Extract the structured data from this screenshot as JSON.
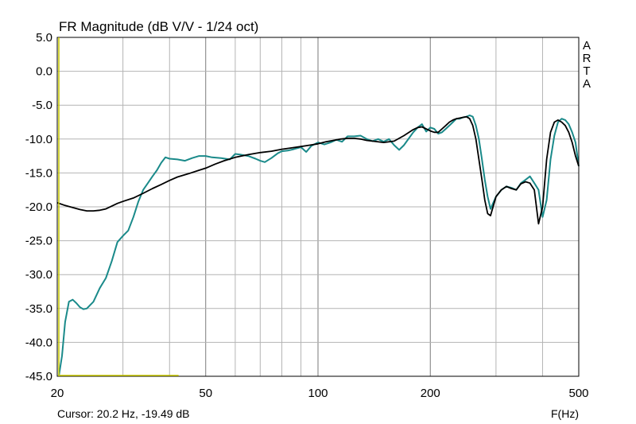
{
  "chart_data": {
    "type": "line",
    "title": "FR Magnitude (dB V/V - 1/24 oct)",
    "brand_letters": [
      "A",
      "R",
      "T",
      "A"
    ],
    "xlabel": "F(Hz)",
    "x_scale": "log",
    "xlim": [
      20,
      500
    ],
    "ylim": [
      -45,
      5
    ],
    "x_ticks": [
      "20",
      "50",
      "100",
      "200",
      "500"
    ],
    "x_tick_values": [
      20,
      50,
      100,
      200,
      500
    ],
    "y_ticks": [
      "5.0",
      "0.0",
      "-5.0",
      "-10.0",
      "-15.0",
      "-20.0",
      "-25.0",
      "-30.0",
      "-35.0",
      "-40.0",
      "-45.0"
    ],
    "y_tick_values": [
      5,
      0,
      -5,
      -10,
      -15,
      -20,
      -25,
      -30,
      -35,
      -40,
      -45
    ],
    "grid": true,
    "cursor_text": "Cursor: 20.2 Hz, -19.49 dB",
    "cursor": {
      "freq": 20.2,
      "level": -19.49,
      "color": "#c8c800"
    },
    "series": [
      {
        "color": "#1a8a8a",
        "x": [
          20.2,
          20.6,
          21.0,
          21.5,
          22,
          22.5,
          23,
          23.5,
          24,
          25,
          26,
          27,
          28,
          29,
          30,
          31,
          32,
          33,
          34,
          35,
          36,
          37,
          38,
          39,
          40,
          42,
          44,
          46,
          48,
          50,
          52,
          55,
          58,
          60,
          62,
          65,
          68,
          70,
          72,
          75,
          78,
          80,
          83,
          86,
          90,
          93,
          96,
          100,
          104,
          108,
          112,
          116,
          120,
          125,
          130,
          135,
          140,
          145,
          150,
          155,
          160,
          165,
          170,
          180,
          185,
          190,
          195,
          200,
          205,
          210,
          215,
          220,
          225,
          230,
          235,
          240,
          245,
          250,
          255,
          260,
          265,
          270,
          275,
          280,
          285,
          290,
          300,
          310,
          320,
          330,
          340,
          350,
          360,
          370,
          380,
          390,
          400,
          410,
          420,
          430,
          440,
          450,
          460,
          470,
          480,
          490,
          500
        ],
        "y": [
          -45,
          -42,
          -37,
          -34,
          -33.7,
          -34.2,
          -34.8,
          -35.1,
          -35,
          -34,
          -32,
          -30.5,
          -28,
          -25.2,
          -24.3,
          -23.5,
          -21.5,
          -19.2,
          -17.5,
          -16.5,
          -15.5,
          -14.6,
          -13.5,
          -12.7,
          -12.9,
          -13,
          -13.2,
          -12.8,
          -12.5,
          -12.5,
          -12.7,
          -12.8,
          -13.0,
          -12.2,
          -12.3,
          -12.5,
          -12.9,
          -13.2,
          -13.4,
          -12.8,
          -12.1,
          -11.8,
          -11.7,
          -11.5,
          -11.2,
          -11.9,
          -11.0,
          -10.5,
          -10.8,
          -10.5,
          -10.1,
          -10.4,
          -9.6,
          -9.6,
          -9.5,
          -10.0,
          -10.3,
          -10.0,
          -10.4,
          -10.0,
          -10.9,
          -11.6,
          -10.9,
          -9.0,
          -8.3,
          -7.8,
          -8.9,
          -8.3,
          -8.5,
          -9.2,
          -9.0,
          -8.5,
          -8.0,
          -7.5,
          -7.0,
          -7.0,
          -6.8,
          -6.7,
          -6.5,
          -6.7,
          -8.0,
          -10,
          -13,
          -16,
          -18.5,
          -20.3,
          -18.5,
          -17.5,
          -17.0,
          -17.2,
          -17.5,
          -16.5,
          -16.0,
          -15.5,
          -16.5,
          -17.5,
          -21.5,
          -19,
          -13,
          -9.5,
          -7.5,
          -7.0,
          -7.2,
          -7.8,
          -9.0,
          -10.5,
          -14.0
        ]
      },
      {
        "color": "#000000",
        "x": [
          20,
          21,
          22,
          23,
          24,
          25,
          26,
          27,
          28,
          29,
          30,
          32,
          34,
          36,
          38,
          40,
          42,
          45,
          48,
          50,
          53,
          56,
          60,
          65,
          70,
          75,
          80,
          85,
          90,
          95,
          100,
          105,
          110,
          115,
          120,
          125,
          130,
          135,
          140,
          150,
          160,
          170,
          180,
          185,
          190,
          195,
          200,
          205,
          210,
          215,
          220,
          225,
          230,
          235,
          240,
          245,
          250,
          255,
          260,
          265,
          270,
          275,
          280,
          285,
          290,
          300,
          310,
          320,
          330,
          340,
          350,
          360,
          370,
          380,
          390,
          400,
          410,
          420,
          430,
          440,
          450,
          460,
          470,
          480,
          490,
          500
        ],
        "y": [
          -19.4,
          -19.8,
          -20.1,
          -20.4,
          -20.6,
          -20.6,
          -20.5,
          -20.3,
          -19.9,
          -19.5,
          -19.2,
          -18.7,
          -18.0,
          -17.3,
          -16.7,
          -16.1,
          -15.6,
          -15.1,
          -14.6,
          -14.3,
          -13.7,
          -13.2,
          -12.7,
          -12.3,
          -12.0,
          -11.8,
          -11.5,
          -11.3,
          -11.1,
          -10.9,
          -10.7,
          -10.4,
          -10.2,
          -10.0,
          -9.9,
          -9.9,
          -10.0,
          -10.2,
          -10.3,
          -10.5,
          -10.3,
          -9.5,
          -8.6,
          -8.3,
          -8.2,
          -8.5,
          -8.8,
          -9.0,
          -9.0,
          -8.5,
          -8.0,
          -7.5,
          -7.2,
          -7.0,
          -6.9,
          -6.8,
          -6.7,
          -7.0,
          -8.0,
          -10.0,
          -13.0,
          -16.0,
          -19.0,
          -21.0,
          -21.3,
          -18.5,
          -17.5,
          -17.0,
          -17.3,
          -17.5,
          -16.6,
          -16.3,
          -16.5,
          -17.5,
          -22.5,
          -20.0,
          -13.0,
          -9.0,
          -7.5,
          -7.2,
          -7.5,
          -8.0,
          -9.0,
          -10.5,
          -12.5,
          -14.0
        ]
      }
    ]
  }
}
